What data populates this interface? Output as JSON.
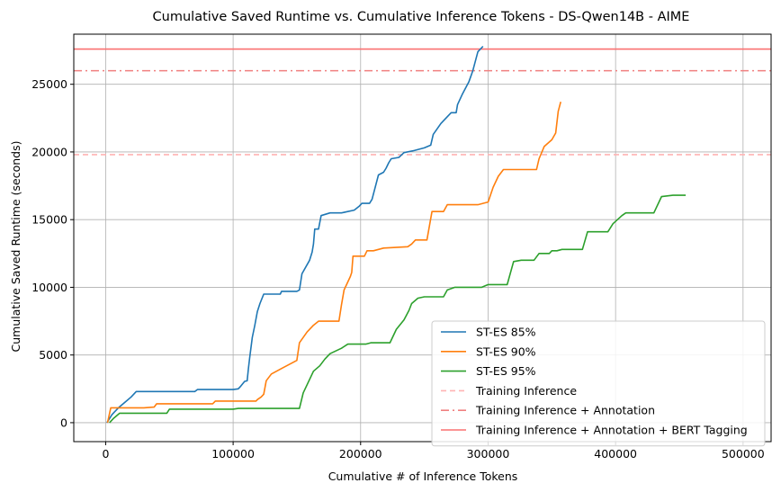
{
  "chart_data": {
    "type": "line",
    "title": "Cumulative Saved Runtime vs. Cumulative Inference Tokens - DS-Qwen14B - AIME",
    "xlabel": "Cumulative # of Inference Tokens",
    "ylabel": "Cumulative Saved Runtime (seconds)",
    "xlim": [
      -25000,
      522000
    ],
    "ylim": [
      -1400,
      28700
    ],
    "xticks": [
      0,
      100000,
      200000,
      300000,
      400000,
      500000
    ],
    "yticks": [
      0,
      5000,
      10000,
      15000,
      20000,
      25000
    ],
    "grid": true,
    "legend_position": "bottom-right",
    "series": [
      {
        "name": "ST-ES 85%",
        "color": "#1f77b4",
        "style": "solid",
        "points": [
          [
            1000,
            0
          ],
          [
            5000,
            600
          ],
          [
            10000,
            1100
          ],
          [
            15000,
            1500
          ],
          [
            20000,
            1900
          ],
          [
            24000,
            2300
          ],
          [
            70000,
            2300
          ],
          [
            72000,
            2450
          ],
          [
            100000,
            2450
          ],
          [
            104000,
            2500
          ],
          [
            106000,
            2700
          ],
          [
            109000,
            3050
          ],
          [
            111000,
            3100
          ],
          [
            112000,
            4000
          ],
          [
            113000,
            4800
          ],
          [
            115000,
            6300
          ],
          [
            117000,
            7200
          ],
          [
            119000,
            8200
          ],
          [
            121000,
            8800
          ],
          [
            124000,
            9500
          ],
          [
            137000,
            9500
          ],
          [
            138000,
            9700
          ],
          [
            144000,
            9700
          ],
          [
            145000,
            9700
          ],
          [
            150000,
            9700
          ],
          [
            152000,
            9800
          ],
          [
            154000,
            11000
          ],
          [
            160000,
            12000
          ],
          [
            161000,
            12300
          ],
          [
            162000,
            12600
          ],
          [
            163000,
            13200
          ],
          [
            164000,
            14300
          ],
          [
            167000,
            14300
          ],
          [
            169000,
            15300
          ],
          [
            176000,
            15500
          ],
          [
            185000,
            15500
          ],
          [
            195000,
            15700
          ],
          [
            199000,
            16000
          ],
          [
            201000,
            16200
          ],
          [
            207000,
            16200
          ],
          [
            209000,
            16500
          ],
          [
            214000,
            18300
          ],
          [
            218000,
            18500
          ],
          [
            220000,
            18800
          ],
          [
            222000,
            19200
          ],
          [
            224000,
            19500
          ],
          [
            230000,
            19600
          ],
          [
            234000,
            19950
          ],
          [
            242000,
            20100
          ],
          [
            250000,
            20300
          ],
          [
            255000,
            20500
          ],
          [
            257000,
            21300
          ],
          [
            260000,
            21700
          ],
          [
            263000,
            22100
          ],
          [
            268000,
            22600
          ],
          [
            271000,
            22900
          ],
          [
            275000,
            22900
          ],
          [
            276000,
            23500
          ],
          [
            280000,
            24300
          ],
          [
            285000,
            25200
          ],
          [
            288000,
            26000
          ],
          [
            292000,
            27400
          ],
          [
            296000,
            27800
          ]
        ]
      },
      {
        "name": "ST-ES 90%",
        "color": "#ff7f0e",
        "style": "solid",
        "points": [
          [
            1500,
            0
          ],
          [
            4000,
            1100
          ],
          [
            30000,
            1100
          ],
          [
            38000,
            1150
          ],
          [
            40000,
            1400
          ],
          [
            84000,
            1400
          ],
          [
            86000,
            1600
          ],
          [
            118000,
            1600
          ],
          [
            119000,
            1700
          ],
          [
            122000,
            1900
          ],
          [
            124000,
            2100
          ],
          [
            126000,
            3100
          ],
          [
            130000,
            3600
          ],
          [
            138000,
            4000
          ],
          [
            150000,
            4600
          ],
          [
            152000,
            5900
          ],
          [
            158000,
            6700
          ],
          [
            163000,
            7200
          ],
          [
            167000,
            7500
          ],
          [
            183000,
            7500
          ],
          [
            185000,
            8700
          ],
          [
            187000,
            9800
          ],
          [
            190000,
            10400
          ],
          [
            192000,
            10800
          ],
          [
            193000,
            11100
          ],
          [
            194000,
            12300
          ],
          [
            203000,
            12300
          ],
          [
            205000,
            12700
          ],
          [
            210000,
            12700
          ],
          [
            218000,
            12900
          ],
          [
            237000,
            13000
          ],
          [
            240000,
            13200
          ],
          [
            243000,
            13500
          ],
          [
            252000,
            13500
          ],
          [
            256000,
            15600
          ],
          [
            265000,
            15600
          ],
          [
            268000,
            16100
          ],
          [
            292000,
            16100
          ],
          [
            300000,
            16300
          ],
          [
            304000,
            17400
          ],
          [
            308000,
            18200
          ],
          [
            312000,
            18700
          ],
          [
            338000,
            18700
          ],
          [
            340000,
            19500
          ],
          [
            344000,
            20400
          ],
          [
            350000,
            20900
          ],
          [
            353000,
            21400
          ],
          [
            355000,
            23000
          ],
          [
            357000,
            23700
          ]
        ]
      },
      {
        "name": "ST-ES 95%",
        "color": "#2ca02c",
        "style": "solid",
        "points": [
          [
            3000,
            0
          ],
          [
            6000,
            300
          ],
          [
            11000,
            700
          ],
          [
            48000,
            700
          ],
          [
            50000,
            1000
          ],
          [
            100000,
            1000
          ],
          [
            104000,
            1050
          ],
          [
            152000,
            1050
          ],
          [
            155000,
            2200
          ],
          [
            160000,
            3200
          ],
          [
            163000,
            3800
          ],
          [
            168000,
            4200
          ],
          [
            172000,
            4700
          ],
          [
            176000,
            5100
          ],
          [
            185000,
            5500
          ],
          [
            190000,
            5800
          ],
          [
            204000,
            5800
          ],
          [
            208000,
            5900
          ],
          [
            223000,
            5900
          ],
          [
            228000,
            6900
          ],
          [
            234000,
            7600
          ],
          [
            238000,
            8300
          ],
          [
            240000,
            8800
          ],
          [
            245000,
            9200
          ],
          [
            250000,
            9300
          ],
          [
            265000,
            9300
          ],
          [
            268000,
            9800
          ],
          [
            274000,
            10000
          ],
          [
            295000,
            10000
          ],
          [
            300000,
            10200
          ],
          [
            315000,
            10200
          ],
          [
            320000,
            11900
          ],
          [
            326000,
            12000
          ],
          [
            336000,
            12000
          ],
          [
            340000,
            12500
          ],
          [
            348000,
            12500
          ],
          [
            350000,
            12700
          ],
          [
            354000,
            12700
          ],
          [
            358000,
            12800
          ],
          [
            374000,
            12800
          ],
          [
            378000,
            14100
          ],
          [
            394000,
            14100
          ],
          [
            398000,
            14700
          ],
          [
            405000,
            15300
          ],
          [
            408000,
            15500
          ],
          [
            430000,
            15500
          ],
          [
            436000,
            16700
          ],
          [
            445000,
            16800
          ],
          [
            455000,
            16800
          ]
        ]
      },
      {
        "name": "Training Inference",
        "color": "#ffb3b3",
        "style": "dashed",
        "y": 19800
      },
      {
        "name": "Training Inference + Annotation",
        "color": "#f08080",
        "style": "dashdot",
        "y": 26000
      },
      {
        "name": "Training Inference + Annotation + BERT Tagging",
        "color": "#fa7070",
        "style": "solid",
        "y": 27600
      }
    ]
  }
}
